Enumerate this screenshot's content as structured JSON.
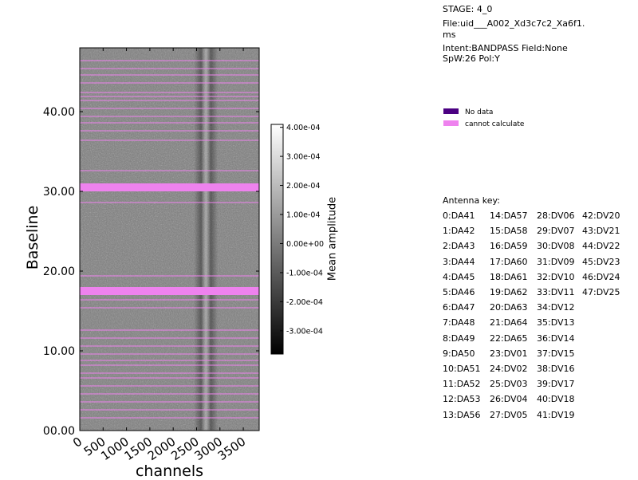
{
  "header": {
    "stage": "STAGE: 4_0",
    "file_line1": "File:uid___A002_Xd3c7c2_Xa6f1.",
    "file_line2": "ms",
    "intent": "Intent:BANDPASS Field:None",
    "spw": "SpW:26 Pol:Y"
  },
  "legend": {
    "items": [
      {
        "label": "No data",
        "color": "#4b0082"
      },
      {
        "label": "cannot calculate",
        "color": "#ee82ee"
      }
    ]
  },
  "antenna_key": {
    "title": "Antenna key:",
    "rows": [
      [
        "0:DA41",
        "14:DA57",
        "28:DV06",
        "42:DV20"
      ],
      [
        "1:DA42",
        "15:DA58",
        "29:DV07",
        "43:DV21"
      ],
      [
        "2:DA43",
        "16:DA59",
        "30:DV08",
        "44:DV22"
      ],
      [
        "3:DA44",
        "17:DA60",
        "31:DV09",
        "45:DV23"
      ],
      [
        "4:DA45",
        "18:DA61",
        "32:DV10",
        "46:DV24"
      ],
      [
        "5:DA46",
        "19:DA62",
        "33:DV11",
        "47:DV25"
      ],
      [
        "6:DA47",
        "20:DA63",
        "34:DV12",
        ""
      ],
      [
        "7:DA48",
        "21:DA64",
        "35:DV13",
        ""
      ],
      [
        "8:DA49",
        "22:DA65",
        "36:DV14",
        ""
      ],
      [
        "9:DA50",
        "23:DV01",
        "37:DV15",
        ""
      ],
      [
        "10:DA51",
        "24:DV02",
        "38:DV16",
        ""
      ],
      [
        "11:DA52",
        "25:DV03",
        "39:DV17",
        ""
      ],
      [
        "12:DA53",
        "26:DV04",
        "40:DV18",
        ""
      ],
      [
        "13:DA56",
        "27:DV05",
        "41:DV19",
        ""
      ]
    ]
  },
  "chart_data": {
    "type": "heatmap",
    "xlabel": "channels",
    "ylabel": "Baseline",
    "xlim": [
      0,
      3840
    ],
    "ylim": [
      0,
      48
    ],
    "x_ticks": [
      0,
      500,
      1000,
      1500,
      2000,
      2500,
      3000,
      3500
    ],
    "x_tick_labels": [
      "0",
      "500",
      "1000",
      "1500",
      "2000",
      "2500",
      "3000",
      "3500"
    ],
    "y_ticks": [
      0,
      10,
      20,
      30,
      40
    ],
    "y_tick_labels": [
      "00.00",
      "10.00",
      "20.00",
      "30.00",
      "40.00"
    ],
    "colorbar": {
      "label": "Mean amplitude",
      "min": -0.00038,
      "max": 0.00041,
      "ticks": [
        0.0004,
        0.0003,
        0.0002,
        0.0001,
        0,
        -0.0001,
        -0.0002,
        -0.0003
      ],
      "tick_labels": [
        "4.00e-04",
        "3.00e-04",
        "2.00e-04",
        "1.00e-04",
        "0.00e+00",
        "-1.00e-04",
        "-2.00e-04",
        "-3.00e-04"
      ],
      "colormap": "gray"
    },
    "flag_colors": {
      "no_data": "#4b0082",
      "cannot_calculate": "#ee82ee"
    },
    "cannot_calculate_rows": [
      1.6,
      2.6,
      3.6,
      4.6,
      5.6,
      6.6,
      7.2,
      8.2,
      8.8,
      9.6,
      10.6,
      11.6,
      12.6,
      15.4,
      16.4,
      19.4,
      28.6,
      32.6,
      36.4,
      37.6,
      38.6,
      39.4,
      40.4,
      41.4,
      41.9,
      42.4,
      43.6,
      44.6,
      45.4,
      46.4
    ],
    "cannot_calculate_bands": [
      [
        17,
        18
      ],
      [
        30,
        31
      ]
    ],
    "feature_channel": 2700
  }
}
